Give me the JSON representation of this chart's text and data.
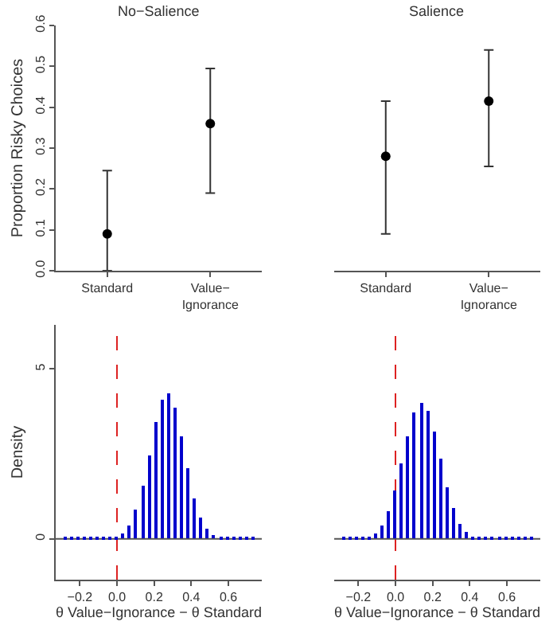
{
  "chart_data": [
    {
      "type": "scatter",
      "title": "No−Salience",
      "ylabel": "Proportion Risky Choices",
      "categories": [
        "Standard",
        "Value−\nIgnorance"
      ],
      "values": [
        0.09,
        0.36
      ],
      "errors": [
        [
          0.0,
          0.245
        ],
        [
          0.19,
          0.495
        ]
      ],
      "color": "#000000",
      "marker": "circle",
      "ylim": [
        0,
        0.6
      ],
      "yticks": [
        {
          "value": 0,
          "label": "0.0"
        },
        {
          "value": 0.1,
          "label": "0.1"
        },
        {
          "value": 0.2,
          "label": "0.2"
        },
        {
          "value": 0.3,
          "label": "0.3"
        },
        {
          "value": 0.4,
          "label": "0.4"
        },
        {
          "value": 0.5,
          "label": "0.5"
        },
        {
          "value": 0.6,
          "label": "0.6"
        }
      ],
      "grid": false
    },
    {
      "type": "scatter",
      "title": "Salience",
      "categories": [
        "Standard",
        "Value−\nIgnorance"
      ],
      "values": [
        0.28,
        0.415
      ],
      "errors": [
        [
          0.09,
          0.415
        ],
        [
          0.255,
          0.54
        ]
      ],
      "color": "#000000",
      "marker": "circle",
      "ylim": [
        0,
        0.6
      ],
      "tick_labels": "x",
      "grid": false
    },
    {
      "type": "histogram",
      "xlabel": "θ Value−Ignorance − θ Standard",
      "ylabel": "Density",
      "color": "#0000cc",
      "bins": [
        -0.3,
        -0.265,
        -0.23,
        -0.195,
        -0.16,
        -0.125,
        -0.09,
        -0.055,
        -0.02,
        0.015,
        0.05,
        0.085,
        0.12,
        0.155,
        0.19,
        0.225,
        0.26,
        0.295,
        0.33,
        0.365,
        0.4,
        0.435,
        0.47,
        0.505,
        0.54,
        0.575,
        0.61,
        0.645,
        0.68,
        0.715,
        0.75
      ],
      "values": [
        0.02,
        0.02,
        0.02,
        0.02,
        0.02,
        0.02,
        0.02,
        0.03,
        0.08,
        0.17,
        0.4,
        0.85,
        1.56,
        2.47,
        3.43,
        4.1,
        4.28,
        3.85,
        3.03,
        2.06,
        1.21,
        0.63,
        0.28,
        0.11,
        0.04,
        0.02,
        0.02,
        0.02,
        0.02,
        0.02
      ],
      "xlim": [
        -0.33,
        0.78
      ],
      "xticks": [
        {
          "value": -0.2,
          "label": "−0.2"
        },
        {
          "value": 0,
          "label": "0.0"
        },
        {
          "value": 0.2,
          "label": "0.2"
        },
        {
          "value": 0.4,
          "label": "0.4"
        },
        {
          "value": 0.6,
          "label": "0.6"
        }
      ],
      "ylim": [
        -1.2,
        6.3
      ],
      "yticks": [
        0,
        5
      ],
      "ref_lines": [
        {
          "axis": "x",
          "value": 0,
          "color": "#dd2222",
          "line_style": "dashed"
        },
        {
          "axis": "y",
          "value": 0,
          "color": "#555555",
          "line_style": "solid"
        }
      ],
      "grid": false
    },
    {
      "type": "histogram",
      "xlabel": "θ Value−Ignorance − θ Standard",
      "color": "#0000cc",
      "bins": [
        -0.3,
        -0.265,
        -0.23,
        -0.195,
        -0.16,
        -0.125,
        -0.09,
        -0.055,
        -0.02,
        0.015,
        0.05,
        0.085,
        0.12,
        0.155,
        0.19,
        0.225,
        0.26,
        0.295,
        0.33,
        0.365,
        0.4,
        0.435,
        0.47,
        0.505,
        0.54,
        0.575,
        0.61,
        0.645,
        0.68,
        0.715,
        0.75
      ],
      "values": [
        0.02,
        0.02,
        0.02,
        0.03,
        0.07,
        0.18,
        0.41,
        0.82,
        1.44,
        2.22,
        3.04,
        3.7,
        3.98,
        3.77,
        3.16,
        2.34,
        1.53,
        0.89,
        0.46,
        0.21,
        0.08,
        0.03,
        0.02,
        0.02,
        0.02,
        0.02,
        0.02,
        0.02,
        0.02,
        0.02
      ],
      "xlim": [
        -0.33,
        0.78
      ],
      "xticks": [
        {
          "value": -0.2,
          "label": "−0.2"
        },
        {
          "value": 0,
          "label": "0.0"
        },
        {
          "value": 0.2,
          "label": "0.2"
        },
        {
          "value": 0.4,
          "label": "0.4"
        },
        {
          "value": 0.6,
          "label": "0.6"
        }
      ],
      "ylim": [
        -1.2,
        6.3
      ],
      "yticks": [
        0,
        5
      ],
      "tick_labels": "x",
      "ref_lines": [
        {
          "axis": "x",
          "value": 0,
          "color": "#dd2222",
          "line_style": "dashed"
        },
        {
          "axis": "y",
          "value": 0,
          "color": "#555555",
          "line_style": "solid"
        }
      ],
      "grid": false
    }
  ]
}
